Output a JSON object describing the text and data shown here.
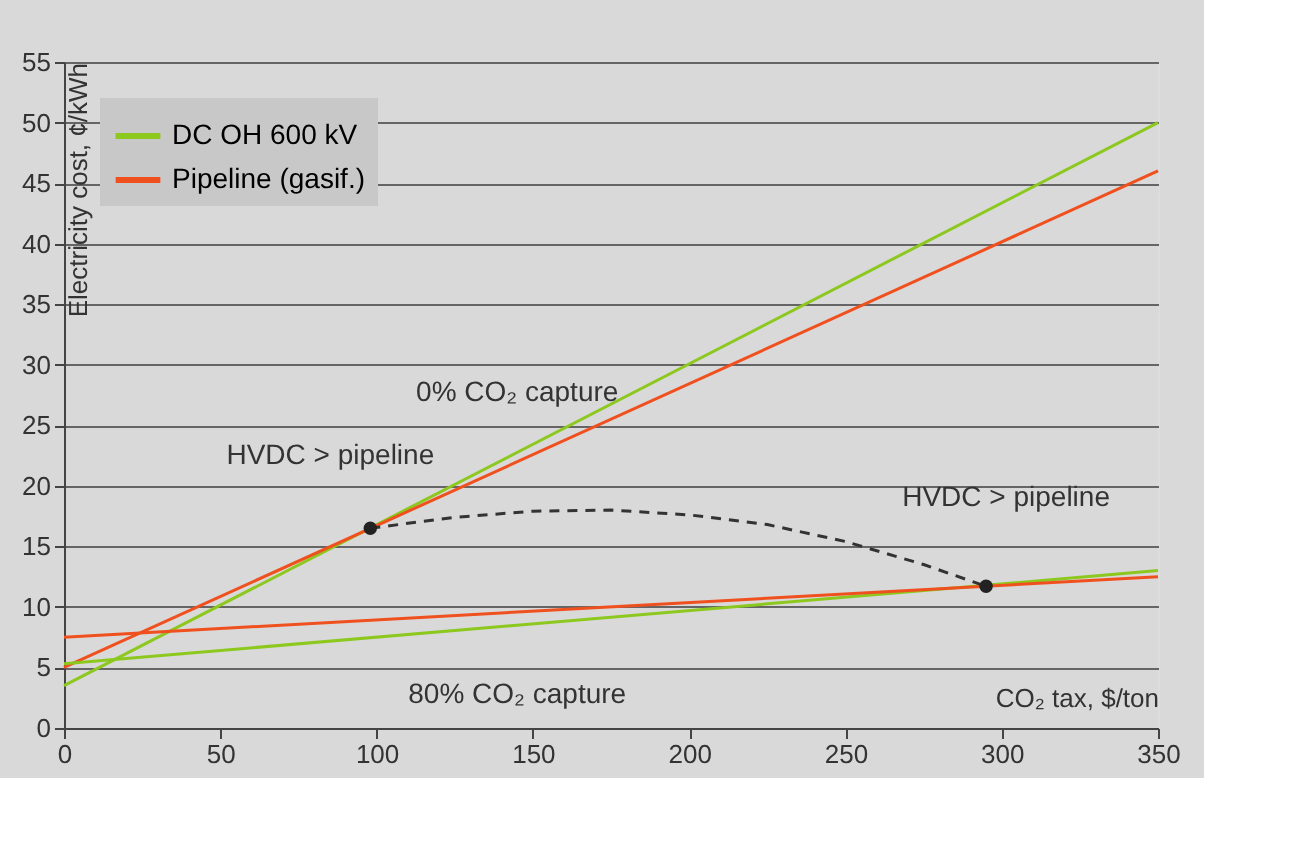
{
  "chart_data": {
    "type": "line",
    "xlabel": "CO₂ tax, $/ton",
    "ylabel": "Electricity cost, ¢/kWh",
    "xlim": [
      0,
      350
    ],
    "xticks": [
      0,
      50,
      100,
      150,
      200,
      250,
      300,
      350
    ],
    "ylim": [
      0,
      55
    ],
    "yticks": [
      0,
      5,
      10,
      15,
      20,
      25,
      30,
      35,
      40,
      45,
      50,
      55
    ],
    "grid": "y",
    "legend": "top left",
    "marker": "none",
    "line_style": "solid",
    "series": [
      {
        "name": "DC OH 600 kV",
        "color": "#8cc81e",
        "x": [
          0,
          350
        ],
        "values": [
          3.5,
          50
        ]
      },
      {
        "name": "Pipeline (gasif.)",
        "color": "#f0501e",
        "x": [
          0,
          350
        ],
        "values": [
          5,
          46
        ]
      },
      {
        "color": "#8cc81e",
        "x": [
          0,
          350
        ],
        "values": [
          5.3,
          13
        ]
      },
      {
        "color": "#f0501e",
        "x": [
          0,
          350
        ],
        "values": [
          7.5,
          12.5
        ]
      },
      {
        "type": "line",
        "line_style": "dashed",
        "color": "#333333",
        "x": [
          98,
          125,
          150,
          175,
          200,
          225,
          250,
          275,
          295
        ],
        "values": [
          16.5,
          17.4,
          17.9,
          18,
          17.6,
          16.8,
          15.4,
          13.5,
          11.7
        ]
      },
      {
        "type": "scatter",
        "marker": "circle",
        "color": "#222222",
        "x": [
          98,
          295
        ],
        "values": [
          16.5,
          11.7
        ]
      }
    ],
    "annotations": [
      {
        "text": "0% CO₂ capture",
        "x": 145,
        "y": 22.4
      },
      {
        "text": "80% CO₂ capture",
        "x": 145,
        "y": 9.3
      },
      {
        "text": "HVDC > pipeline",
        "x": 98,
        "y": 16.5
      },
      {
        "text": "HVDC > pipeline",
        "x": 295,
        "y": 11.7
      }
    ]
  }
}
